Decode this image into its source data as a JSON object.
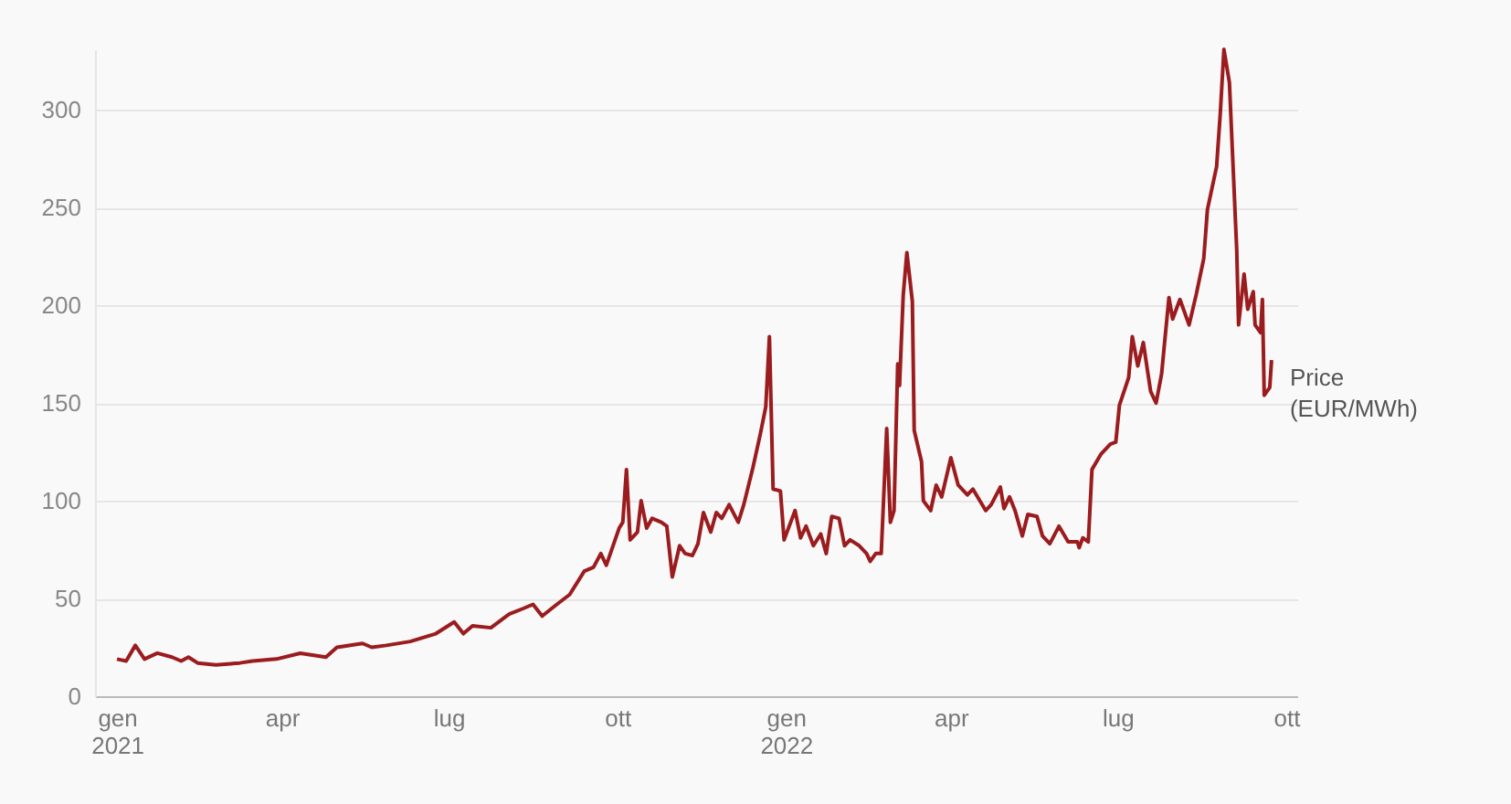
{
  "chart_data": {
    "type": "line",
    "x": [
      "2021-01-01",
      "2021-01-06",
      "2021-01-11",
      "2021-01-16",
      "2021-01-23",
      "2021-01-31",
      "2021-02-05",
      "2021-02-09",
      "2021-02-14",
      "2021-02-24",
      "2021-03-09",
      "2021-03-16",
      "2021-03-29",
      "2021-04-11",
      "2021-04-25",
      "2021-05-01",
      "2021-05-15",
      "2021-05-20",
      "2021-05-28",
      "2021-06-10",
      "2021-06-24",
      "2021-07-04",
      "2021-07-09",
      "2021-07-14",
      "2021-07-24",
      "2021-08-03",
      "2021-08-11",
      "2021-08-16",
      "2021-08-21",
      "2021-08-29",
      "2021-09-05",
      "2021-09-13",
      "2021-09-18",
      "2021-09-22",
      "2021-09-25",
      "2021-10-02",
      "2021-10-04",
      "2021-10-06",
      "2021-10-08",
      "2021-10-12",
      "2021-10-14",
      "2021-10-17",
      "2021-10-20",
      "2021-10-25",
      "2021-10-28",
      "2021-10-31",
      "2021-11-04",
      "2021-11-07",
      "2021-11-11",
      "2021-11-14",
      "2021-11-17",
      "2021-11-21",
      "2021-11-24",
      "2021-11-27",
      "2021-12-01",
      "2021-12-06",
      "2021-12-09",
      "2021-12-14",
      "2021-12-18",
      "2021-12-21",
      "2021-12-23",
      "2021-12-25",
      "2021-12-29",
      "2021-12-31",
      "2022-01-06",
      "2022-01-09",
      "2022-01-12",
      "2022-01-16",
      "2022-01-20",
      "2022-01-23",
      "2022-01-26",
      "2022-01-30",
      "2022-02-02",
      "2022-02-05",
      "2022-02-10",
      "2022-02-14",
      "2022-02-16",
      "2022-02-19",
      "2022-02-22",
      "2022-02-25",
      "2022-02-27",
      "2022-03-01",
      "2022-03-03",
      "2022-03-04",
      "2022-03-06",
      "2022-03-08",
      "2022-03-11",
      "2022-03-12",
      "2022-03-16",
      "2022-03-17",
      "2022-03-21",
      "2022-03-24",
      "2022-03-27",
      "2022-04-01",
      "2022-04-05",
      "2022-04-10",
      "2022-04-13",
      "2022-04-20",
      "2022-04-23",
      "2022-04-28",
      "2022-04-30",
      "2022-05-03",
      "2022-05-06",
      "2022-05-10",
      "2022-05-13",
      "2022-05-18",
      "2022-05-21",
      "2022-05-25",
      "2022-05-30",
      "2022-06-04",
      "2022-06-09",
      "2022-06-10",
      "2022-06-12",
      "2022-06-15",
      "2022-06-17",
      "2022-06-22",
      "2022-06-27",
      "2022-06-30",
      "2022-07-02",
      "2022-07-07",
      "2022-07-09",
      "2022-07-12",
      "2022-07-15",
      "2022-07-19",
      "2022-07-22",
      "2022-07-25",
      "2022-07-29",
      "2022-07-31",
      "2022-08-04",
      "2022-08-09",
      "2022-08-13",
      "2022-08-17",
      "2022-08-19",
      "2022-08-24",
      "2022-08-26",
      "2022-08-28",
      "2022-08-31",
      "2022-09-02",
      "2022-09-04",
      "2022-09-05",
      "2022-09-08",
      "2022-09-10",
      "2022-09-13",
      "2022-09-14",
      "2022-09-17",
      "2022-09-18",
      "2022-09-19",
      "2022-09-22",
      "2022-09-23"
    ],
    "series": [
      {
        "name": "Price (EUR/MWh)",
        "color": "#9b1c1f",
        "values": [
          19,
          18,
          26,
          19,
          22,
          20,
          18,
          20,
          17,
          16,
          17,
          18,
          19,
          22,
          20,
          25,
          27,
          25,
          26,
          28,
          32,
          38,
          32,
          36,
          35,
          42,
          45,
          47,
          41,
          47,
          52,
          64,
          66,
          73,
          67,
          86,
          89,
          116,
          80,
          84,
          100,
          86,
          91,
          89,
          87,
          61,
          77,
          73,
          72,
          78,
          94,
          84,
          94,
          91,
          98,
          89,
          98,
          117,
          134,
          148,
          184,
          106,
          105,
          80,
          95,
          81,
          87,
          77,
          83,
          73,
          92,
          91,
          77,
          80,
          77,
          73,
          69,
          73,
          73,
          137,
          89,
          95,
          170,
          159,
          205,
          227,
          202,
          136,
          120,
          100,
          95,
          108,
          102,
          122,
          108,
          103,
          106,
          95,
          98,
          107,
          96,
          102,
          95,
          82,
          93,
          92,
          82,
          78,
          87,
          79,
          79,
          76,
          81,
          79,
          116,
          124,
          129,
          130,
          149,
          163,
          184,
          169,
          181,
          156,
          150,
          165,
          204,
          193,
          203,
          190,
          206,
          224,
          249,
          271,
          298,
          331,
          314,
          271,
          228,
          190,
          216,
          198,
          207,
          190,
          186,
          203,
          154,
          158,
          172
        ]
      }
    ],
    "xlim": [
      "2020-12-20",
      "2022-10-07"
    ],
    "xticks": [
      {
        "value": "2021-01-01",
        "label": "gen\n2021"
      },
      {
        "value": "2021-04-01",
        "label": "apr"
      },
      {
        "value": "2021-07-01",
        "label": "lug"
      },
      {
        "value": "2021-10-01",
        "label": "ott"
      },
      {
        "value": "2022-01-01",
        "label": "gen\n2022"
      },
      {
        "value": "2022-04-01",
        "label": "apr"
      },
      {
        "value": "2022-07-01",
        "label": "lug"
      },
      {
        "value": "2022-10-01",
        "label": "ott"
      }
    ],
    "ylim": [
      0,
      331
    ],
    "yticks": [
      0,
      50,
      100,
      150,
      200,
      250,
      300
    ],
    "grid": "y",
    "legend": false
  }
}
